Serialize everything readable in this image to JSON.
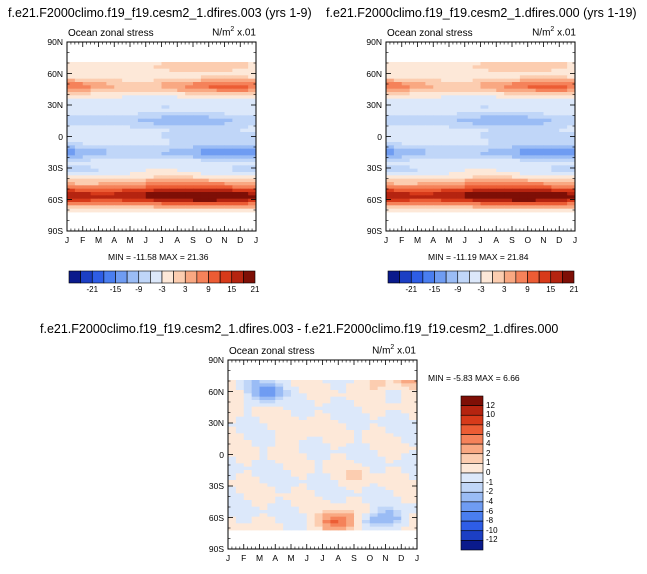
{
  "panels": {
    "top_left": {
      "title": "f.e21.F2000climo.f19_f19.cesm2_1.dfires.003 (yrs 1-9)",
      "left_label": "Ocean zonal stress",
      "units_base": "N/m",
      "units_exp": "2",
      "units_tail": " x.01",
      "minmax": "MIN = -11.58 MAX = 21.36"
    },
    "top_right": {
      "title": "f.e21.F2000climo.f19_f19.cesm2_1.dfires.000 (yrs 1-19)",
      "left_label": "Ocean zonal stress",
      "units_base": "N/m",
      "units_exp": "2",
      "units_tail": " x.01",
      "minmax": "MIN = -11.19 MAX = 21.84"
    },
    "bottom": {
      "title": "f.e21.F2000climo.f19_f19.cesm2_1.dfires.003 - f.e21.F2000climo.f19_f19.cesm2_1.dfires.000",
      "left_label": "Ocean zonal stress",
      "units_base": "N/m",
      "units_exp": "2",
      "units_tail": " x.01",
      "minmax": "MIN = -5.83 MAX = 6.66"
    }
  },
  "axes": {
    "y_ticks": [
      "90N",
      "60N",
      "30N",
      "0",
      "30S",
      "60S",
      "90S"
    ],
    "x_ticks": [
      "J",
      "F",
      "M",
      "A",
      "M",
      "J",
      "J",
      "A",
      "S",
      "O",
      "N",
      "D",
      "J"
    ]
  },
  "colorbars": {
    "top": {
      "labels": [
        "-21",
        "-15",
        "-9",
        "-3",
        "3",
        "9",
        "15",
        "21"
      ],
      "colors": [
        "#0a1a8c",
        "#1c3fc4",
        "#2e5de6",
        "#4a7ef0",
        "#6f9cf2",
        "#9abcf5",
        "#c0d6f8",
        "#dce8fa",
        "#fde8d8",
        "#fccdb0",
        "#f9a882",
        "#f5825a",
        "#ec5c34",
        "#d73a1a",
        "#b52410",
        "#7e0f06"
      ]
    },
    "bottom": {
      "labels": [
        "12",
        "10",
        "8",
        "6",
        "4",
        "2",
        "1",
        "0",
        "-1",
        "-2",
        "-4",
        "-6",
        "-8",
        "-10",
        "-12"
      ],
      "colors": [
        "#7e0f06",
        "#b52410",
        "#d73a1a",
        "#ec5c34",
        "#f5825a",
        "#f9a882",
        "#fccdb0",
        "#fde8d8",
        "#dce8fa",
        "#c0d6f8",
        "#9abcf5",
        "#6f9cf2",
        "#4a7ef0",
        "#2e5de6",
        "#1c3fc4",
        "#0a1a8c"
      ]
    }
  },
  "chart_data": [
    {
      "type": "heatmap",
      "title": "f.e21.F2000climo.f19_f19.cesm2_1.dfires.003 (yrs 1-9)",
      "xlabel": "",
      "ylabel": "",
      "x_categories": [
        "J",
        "F",
        "M",
        "A",
        "M",
        "J",
        "J",
        "A",
        "S",
        "O",
        "N",
        "D",
        "J"
      ],
      "y_categories": [
        "90N",
        "60N",
        "30N",
        "0",
        "30S",
        "60S",
        "90S"
      ],
      "zmin": -11.58,
      "zmax": 21.36,
      "bands": [
        {
          "lat": 67,
          "value": 3,
          "seasonal": 2
        },
        {
          "lat": 48,
          "value": 9,
          "seasonal": 4
        },
        {
          "lat": 30,
          "value": -2,
          "seasonal": 1
        },
        {
          "lat": 15,
          "value": -6,
          "seasonal": 2
        },
        {
          "lat": 0,
          "value": -3,
          "seasonal": 2
        },
        {
          "lat": -15,
          "value": -8,
          "seasonal": 3
        },
        {
          "lat": -32,
          "value": -2,
          "seasonal": 2
        },
        {
          "lat": -45,
          "value": 6,
          "seasonal": 2
        },
        {
          "lat": -55,
          "value": 18,
          "seasonal": 3
        },
        {
          "lat": -62,
          "value": 9,
          "seasonal": 2
        }
      ]
    },
    {
      "type": "heatmap",
      "title": "f.e21.F2000climo.f19_f19.cesm2_1.dfires.000 (yrs 1-19)",
      "xlabel": "",
      "ylabel": "",
      "x_categories": [
        "J",
        "F",
        "M",
        "A",
        "M",
        "J",
        "J",
        "A",
        "S",
        "O",
        "N",
        "D",
        "J"
      ],
      "y_categories": [
        "90N",
        "60N",
        "30N",
        "0",
        "30S",
        "60S",
        "90S"
      ],
      "zmin": -11.19,
      "zmax": 21.84,
      "bands": [
        {
          "lat": 67,
          "value": 3,
          "seasonal": 2
        },
        {
          "lat": 48,
          "value": 9,
          "seasonal": 4
        },
        {
          "lat": 30,
          "value": -2,
          "seasonal": 1
        },
        {
          "lat": 15,
          "value": -6,
          "seasonal": 2
        },
        {
          "lat": 0,
          "value": -3,
          "seasonal": 2
        },
        {
          "lat": -15,
          "value": -8,
          "seasonal": 3
        },
        {
          "lat": -32,
          "value": -2,
          "seasonal": 2
        },
        {
          "lat": -45,
          "value": 6,
          "seasonal": 2
        },
        {
          "lat": -55,
          "value": 18,
          "seasonal": 3
        },
        {
          "lat": -62,
          "value": 9,
          "seasonal": 2
        }
      ]
    },
    {
      "type": "heatmap",
      "title": "f.e21.F2000climo.f19_f19.cesm2_1.dfires.003 - f.e21.F2000climo.f19_f19.cesm2_1.dfires.000",
      "xlabel": "",
      "ylabel": "",
      "x_categories": [
        "J",
        "F",
        "M",
        "A",
        "M",
        "J",
        "J",
        "A",
        "S",
        "O",
        "N",
        "D",
        "J"
      ],
      "y_categories": [
        "90N",
        "60N",
        "30N",
        "0",
        "30S",
        "60S",
        "90S"
      ],
      "zmin": -5.83,
      "zmax": 6.66,
      "features": [
        {
          "month": 2.5,
          "lat": 60,
          "value": -6
        },
        {
          "month": 1.5,
          "lat": 72,
          "value": -2
        },
        {
          "month": 9.5,
          "lat": 68,
          "value": 2
        },
        {
          "month": 11.5,
          "lat": 72,
          "value": 3
        },
        {
          "month": 0.5,
          "lat": 58,
          "value": 1
        },
        {
          "month": 6.8,
          "lat": -64,
          "value": 6
        },
        {
          "month": 7.6,
          "lat": -64,
          "value": 2
        },
        {
          "month": 9.0,
          "lat": -64,
          "value": -2
        },
        {
          "month": 10.2,
          "lat": -60,
          "value": -3
        },
        {
          "month": 4.5,
          "lat": 20,
          "value": 1
        },
        {
          "month": 8.0,
          "lat": -20,
          "value": 1
        }
      ]
    }
  ]
}
